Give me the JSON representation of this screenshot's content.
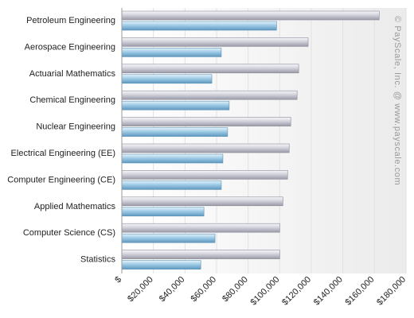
{
  "chart_data": {
    "type": "bar",
    "orientation": "horizontal",
    "categories": [
      "Petroleum Engineering",
      "Aerospace Engineering",
      "Actuarial Mathematics",
      "Chemical Engineering",
      "Nuclear Engineering",
      "Electrical Engineering (EE)",
      "Computer Engineering (CE)",
      "Applied Mathematics",
      "Computer Science (CS)",
      "Statistics"
    ],
    "series": [
      {
        "values": [
          163000,
          118000,
          112000,
          111000,
          107000,
          106000,
          105000,
          102000,
          100000,
          100000
        ],
        "color": "#c4c4d0"
      },
      {
        "values": [
          98000,
          63000,
          57000,
          68000,
          67000,
          64000,
          63000,
          52000,
          59000,
          50000
        ],
        "color": "#8cbcdb"
      }
    ],
    "xlim": [
      0,
      180000
    ],
    "tick_values": [
      0,
      20000,
      40000,
      60000,
      80000,
      100000,
      120000,
      140000,
      160000,
      180000
    ],
    "tick_labels": [
      "$",
      "$20,000",
      "$40,000",
      "$60,000",
      "$80,000",
      "$100,000",
      "$120,000",
      "$140,000",
      "$160,000",
      "$180,000"
    ],
    "grid": true,
    "title": "",
    "xlabel": "",
    "ylabel": ""
  },
  "watermark": "© PayScale, Inc. @ www.payscale.com"
}
